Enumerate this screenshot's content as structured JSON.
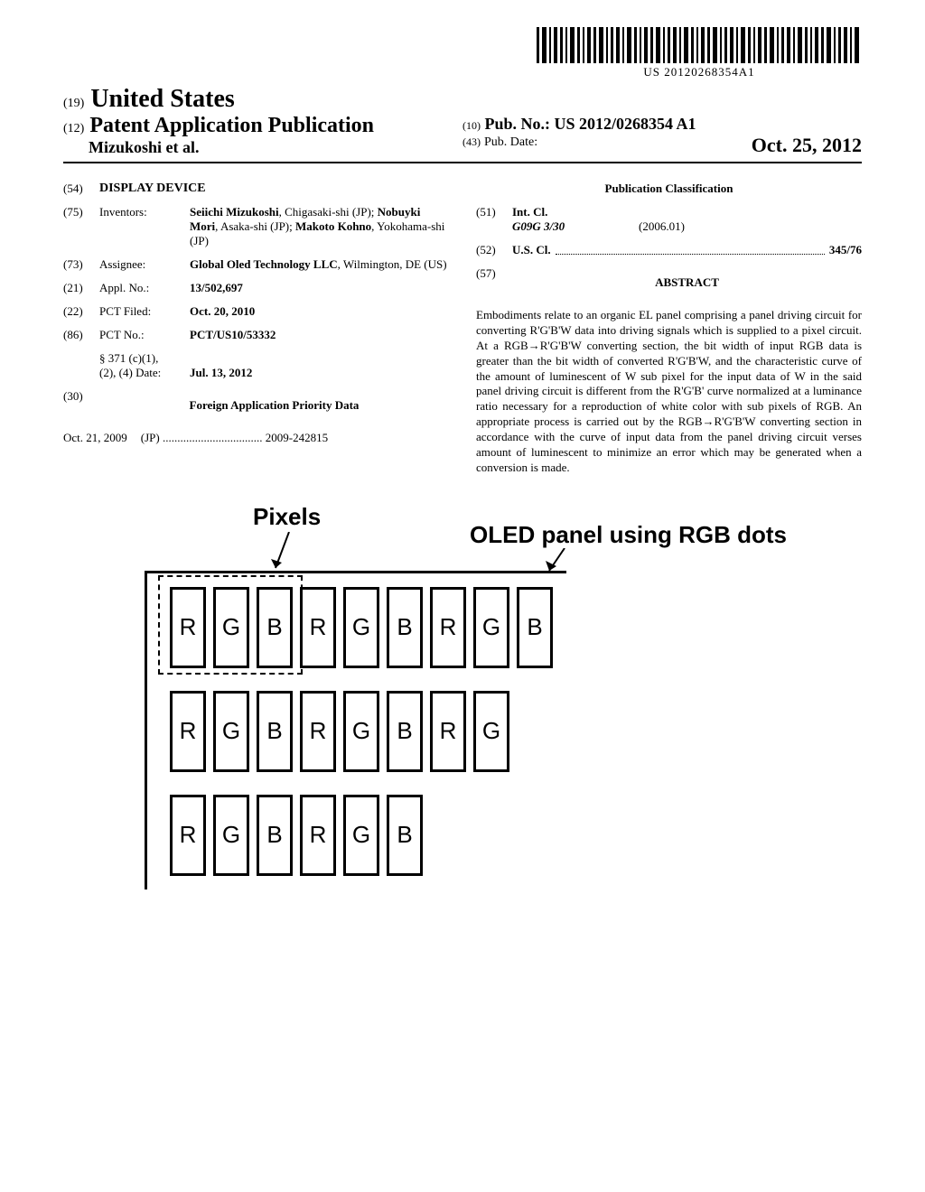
{
  "barcode": {
    "text": "US 20120268354A1"
  },
  "header": {
    "country_prefix": "(19)",
    "country": "United States",
    "pub_type_prefix": "(12)",
    "pub_type": "Patent Application Publication",
    "authors": "Mizukoshi et al.",
    "pub_no_prefix": "(10)",
    "pub_no_label": "Pub. No.:",
    "pub_no": "US 2012/0268354 A1",
    "pub_date_prefix": "(43)",
    "pub_date_label": "Pub. Date:",
    "pub_date": "Oct. 25, 2012"
  },
  "fields": {
    "title_code": "(54)",
    "title": "DISPLAY DEVICE",
    "inventors_code": "(75)",
    "inventors_label": "Inventors:",
    "inventors_value_1": "Seiichi Mizukoshi",
    "inventors_value_2": ", Chigasaki-shi (JP); ",
    "inventors_value_3": "Nobuyki Mori",
    "inventors_value_4": ", Asaka-shi (JP); ",
    "inventors_value_5": "Makoto Kohno",
    "inventors_value_6": ", Yokohama-shi (JP)",
    "assignee_code": "(73)",
    "assignee_label": "Assignee:",
    "assignee_value_1": "Global Oled Technology LLC",
    "assignee_value_2": ", Wilmington, DE (US)",
    "appl_code": "(21)",
    "appl_label": "Appl. No.:",
    "appl_value": "13/502,697",
    "pct_filed_code": "(22)",
    "pct_filed_label": "PCT Filed:",
    "pct_filed_value": "Oct. 20, 2010",
    "pct_no_code": "(86)",
    "pct_no_label": "PCT No.:",
    "pct_no_value": "PCT/US10/53332",
    "section_371_label": "§ 371 (c)(1),",
    "section_371_date_label": "(2), (4) Date:",
    "section_371_date_value": "Jul. 13, 2012",
    "foreign_code": "(30)",
    "foreign_header": "Foreign Application Priority Data",
    "foreign_date": "Oct. 21, 2009",
    "foreign_country": "(JP)",
    "foreign_number": "2009-242815"
  },
  "classification": {
    "header": "Publication Classification",
    "int_cl_code": "(51)",
    "int_cl_label": "Int. Cl.",
    "int_cl_class": "G09G 3/30",
    "int_cl_date": "(2006.01)",
    "us_cl_code": "(52)",
    "us_cl_label": "U.S. Cl.",
    "us_cl_value": "345/76"
  },
  "abstract": {
    "code": "(57)",
    "header": "ABSTRACT",
    "text": "Embodiments relate to an organic EL panel comprising a panel driving circuit for converting R'G'B'W data into driving signals which is supplied to a pixel circuit. At a RGB→R'G'B'W converting section, the bit width of input RGB data is greater than the bit width of converted R'G'B'W, and the characteristic curve of the amount of luminescent of W sub pixel for the input data of W in the said panel driving circuit is different from the R'G'B' curve normalized at a luminance ratio necessary for a reproduction of white color with sub pixels of RGB. An appropriate process is carried out by the RGB→R'G'B'W converting section in accordance with the curve of input data from the panel driving circuit verses amount of luminescent to minimize an error which may be generated when a conversion is made."
  },
  "figure": {
    "pixels_label": "Pixels",
    "oled_label": "OLED panel using RGB dots",
    "rows": [
      [
        "R",
        "G",
        "B",
        "R",
        "G",
        "B",
        "R",
        "G",
        "B"
      ],
      [
        "R",
        "G",
        "B",
        "R",
        "G",
        "B",
        "R",
        "G"
      ],
      [
        "R",
        "G",
        "B",
        "R",
        "G",
        "B"
      ]
    ]
  }
}
